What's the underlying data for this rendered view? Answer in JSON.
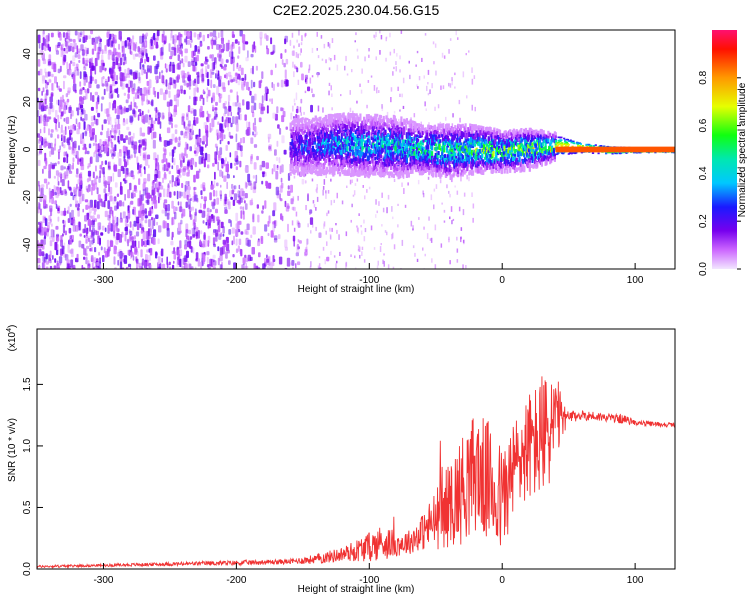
{
  "title": "C2E2.2025.230.04.56.G15",
  "chart_data": [
    {
      "type": "heatmap",
      "xlabel": "Height of straight line (km)",
      "ylabel": "Frequency (Hz)",
      "xlim": [
        -350,
        130
      ],
      "ylim": [
        -50,
        50
      ],
      "xticks": [
        -300,
        -200,
        -100,
        0,
        100
      ],
      "xtick_labels": [
        "-300",
        "-200",
        "-100",
        "0",
        "100"
      ],
      "yticks": [
        -40,
        -20,
        0,
        20,
        40
      ],
      "ytick_labels": [
        "-40",
        "-20",
        "0",
        "20",
        "40"
      ],
      "colorbar": {
        "label": "Normalized spectral amplitude",
        "range": [
          0,
          1
        ],
        "ticks": [
          0.0,
          0.2,
          0.4,
          0.6,
          0.8
        ],
        "tick_labels": [
          "0.0",
          "0.2",
          "0.4",
          "0.6",
          "0.8"
        ]
      },
      "ridge": {
        "x": [
          -160,
          -120,
          -80,
          -60,
          -40,
          -20,
          0,
          20,
          40,
          60,
          80,
          100,
          130
        ],
        "center_hz": [
          2,
          3,
          2,
          1,
          0,
          1,
          0,
          1,
          2,
          1,
          0,
          0,
          0
        ],
        "half_width_hz": [
          8,
          9,
          9,
          7,
          8,
          7,
          6,
          6,
          4,
          2,
          1.5,
          1,
          1
        ],
        "peak_amplitude": [
          0.25,
          0.4,
          0.45,
          0.5,
          0.55,
          0.6,
          0.6,
          0.62,
          0.7,
          0.8,
          0.88,
          0.95,
          0.9
        ]
      },
      "noise_floor_amplitude": 0.15,
      "grid": false,
      "legend": "none"
    },
    {
      "type": "line",
      "xlabel": "Height of straight line (km)",
      "ylabel": "SNR (10 * v/v)",
      "ylabel_multiplier": "(x10",
      "ylabel_multiplier_exp": "4",
      "ylabel_multiplier_close": ")",
      "xlim": [
        -350,
        130
      ],
      "ylim": [
        0,
        1.95
      ],
      "xticks": [
        -300,
        -200,
        -100,
        0,
        100
      ],
      "xtick_labels": [
        "-300",
        "-200",
        "-100",
        "0",
        "100"
      ],
      "yticks": [
        0.0,
        0.5,
        1.0,
        1.5
      ],
      "ytick_labels": [
        "0.0",
        "0.5",
        "1.0",
        "1.5"
      ],
      "series": [
        {
          "color": "#f03232",
          "x": [
            -350,
            -300,
            -250,
            -200,
            -160,
            -140,
            -120,
            -100,
            -90,
            -80,
            -70,
            -60,
            -50,
            -40,
            -30,
            -20,
            -10,
            0,
            10,
            20,
            30,
            40,
            45,
            50,
            60,
            70,
            80,
            90,
            100,
            110,
            130
          ],
          "y": [
            0.02,
            0.03,
            0.04,
            0.05,
            0.06,
            0.08,
            0.12,
            0.18,
            0.22,
            0.2,
            0.22,
            0.3,
            0.4,
            0.52,
            0.65,
            0.8,
            0.7,
            0.55,
            0.85,
            1.0,
            1.05,
            1.2,
            1.22,
            1.23,
            1.25,
            1.24,
            1.23,
            1.22,
            1.19,
            1.18,
            1.17
          ],
          "spread": [
            0.01,
            0.01,
            0.015,
            0.02,
            0.02,
            0.04,
            0.06,
            0.12,
            0.15,
            0.1,
            0.1,
            0.15,
            0.25,
            0.35,
            0.45,
            0.5,
            0.5,
            0.45,
            0.4,
            0.45,
            0.5,
            0.45,
            0.15,
            0.05,
            0.04,
            0.04,
            0.03,
            0.04,
            0.02,
            0.02,
            0.02
          ]
        }
      ],
      "grid": false,
      "legend": "none"
    }
  ]
}
